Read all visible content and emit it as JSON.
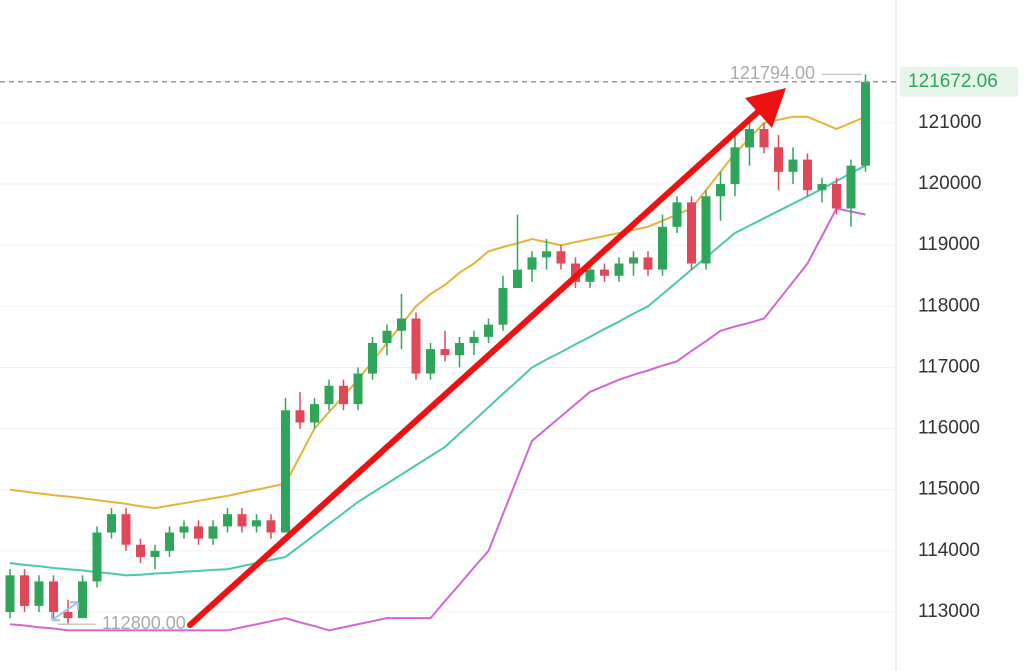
{
  "chart_data": {
    "type": "candlestick",
    "up_color": "#2ea55a",
    "down_color": "#e0485a",
    "ylim": [
      112035,
      123010
    ],
    "yticks": [
      113000,
      114000,
      115000,
      116000,
      117000,
      118000,
      119000,
      120000,
      121000
    ],
    "grid": true,
    "open": [
      113000,
      113600,
      113100,
      113500,
      113000,
      112900,
      113500,
      114300,
      114600,
      114100,
      113900,
      114000,
      114300,
      114400,
      114200,
      114400,
      114600,
      114400,
      114500,
      114300,
      116300,
      116100,
      116400,
      116700,
      116400,
      116900,
      117400,
      117600,
      117800,
      116900,
      117300,
      117200,
      117400,
      117500,
      117700,
      118300,
      118600,
      118800,
      118900,
      118700,
      118400,
      118600,
      118500,
      118700,
      118800,
      118600,
      119300,
      119700,
      118700,
      119800,
      120000,
      120600,
      120900,
      120600,
      120200,
      120400,
      119900,
      120000,
      119600,
      120300
    ],
    "high": [
      113700,
      113700,
      113600,
      113600,
      113200,
      113600,
      114400,
      114700,
      114700,
      114200,
      114100,
      114400,
      114500,
      114500,
      114500,
      114700,
      114700,
      114600,
      114600,
      116500,
      116600,
      116500,
      116800,
      116800,
      117000,
      117500,
      117700,
      118200,
      117900,
      117400,
      117600,
      117500,
      117600,
      117800,
      118500,
      119500,
      118900,
      119100,
      119000,
      118800,
      118700,
      118700,
      118800,
      118900,
      118900,
      119500,
      119800,
      119800,
      119900,
      120200,
      120800,
      121000,
      121000,
      120800,
      120600,
      120500,
      120100,
      120100,
      120400,
      121794
    ],
    "low": [
      112900,
      113000,
      113000,
      112900,
      112800,
      112900,
      113400,
      114200,
      114000,
      113800,
      113700,
      113900,
      114200,
      114100,
      114100,
      114300,
      114300,
      114300,
      114200,
      114300,
      116000,
      116000,
      116300,
      116300,
      116300,
      116800,
      117200,
      117300,
      116800,
      116800,
      117100,
      117000,
      117200,
      117400,
      117600,
      118300,
      118400,
      118600,
      118600,
      118300,
      118300,
      118400,
      118400,
      118500,
      118500,
      118500,
      119200,
      118600,
      118600,
      119400,
      119800,
      120300,
      120500,
      119900,
      120000,
      119800,
      119700,
      119500,
      119300,
      120200
    ],
    "close": [
      113600,
      113100,
      113500,
      113000,
      112900,
      113500,
      114300,
      114600,
      114100,
      113900,
      114000,
      114300,
      114400,
      114200,
      114400,
      114600,
      114400,
      114500,
      114300,
      116300,
      116100,
      116400,
      116700,
      116400,
      116900,
      117400,
      117600,
      117800,
      116900,
      117300,
      117200,
      117400,
      117500,
      117700,
      118300,
      118600,
      118800,
      118900,
      118700,
      118400,
      118600,
      118500,
      118700,
      118800,
      118600,
      119300,
      119700,
      118700,
      119800,
      120000,
      120600,
      120900,
      120600,
      120200,
      120400,
      119900,
      120000,
      119600,
      120300,
      121672.06
    ],
    "series": [
      {
        "color": "#e6b33a",
        "values": [
          115000,
          114970,
          114940,
          114910,
          114890,
          114860,
          114830,
          114800,
          114770,
          114730,
          114700,
          114740,
          114780,
          114820,
          114860,
          114900,
          114950,
          115000,
          115050,
          115100,
          115550,
          116000,
          116270,
          116530,
          116800,
          117100,
          117400,
          117700,
          118000,
          118200,
          118350,
          118550,
          118700,
          118900,
          118970,
          119030,
          119100,
          119050,
          119000,
          119050,
          119100,
          119150,
          119200,
          119250,
          119300,
          119400,
          119500,
          119600,
          119900,
          120200,
          120500,
          120750,
          121000,
          121050,
          121100,
          121100,
          121000,
          120900,
          121000,
          121100
        ]
      },
      {
        "color": "#4cc7ae",
        "values": [
          113800,
          113770,
          113750,
          113720,
          113700,
          113680,
          113650,
          113630,
          113600,
          113610,
          113630,
          113640,
          113660,
          113670,
          113690,
          113700,
          113750,
          113800,
          113850,
          113900,
          114080,
          114260,
          114440,
          114620,
          114800,
          114950,
          115100,
          115250,
          115400,
          115550,
          115700,
          115920,
          116130,
          116350,
          116570,
          116780,
          117000,
          117130,
          117250,
          117380,
          117500,
          117630,
          117750,
          117880,
          118000,
          118200,
          118400,
          118600,
          118800,
          119000,
          119200,
          119320,
          119440,
          119560,
          119680,
          119800,
          119920,
          120050,
          120180,
          120300
        ]
      },
      {
        "color": "#d267cf",
        "values": [
          112800,
          112780,
          112750,
          112730,
          112700,
          112700,
          112700,
          112700,
          112700,
          112700,
          112700,
          112700,
          112700,
          112700,
          112700,
          112700,
          112750,
          112800,
          112850,
          112900,
          112830,
          112770,
          112700,
          112750,
          112800,
          112850,
          112900,
          112900,
          112900,
          112900,
          113180,
          113450,
          113730,
          114000,
          114600,
          115200,
          115800,
          116000,
          116200,
          116400,
          116600,
          116700,
          116800,
          116880,
          116950,
          117030,
          117100,
          117270,
          117430,
          117600,
          117670,
          117730,
          117800,
          118100,
          118400,
          118700,
          119150,
          119600,
          119550,
          119500
        ]
      }
    ],
    "annotations": [
      {
        "value": 121794,
        "label": "121794.00"
      },
      {
        "value": 112800,
        "label": "112800.00"
      }
    ]
  }
}
